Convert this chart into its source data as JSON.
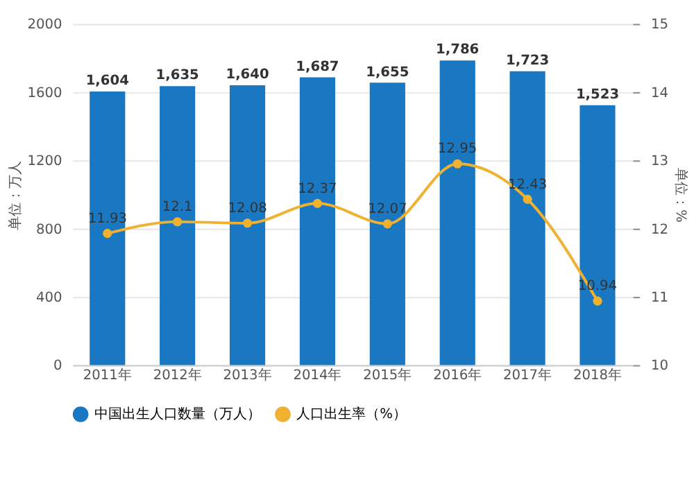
{
  "chart_data": {
    "type": "bar",
    "ylabel": "单位：万人",
    "y2label": "单位：%",
    "categories": [
      "2011年",
      "2012年",
      "2013年",
      "2014年",
      "2015年",
      "2016年",
      "2017年",
      "2018年"
    ],
    "series": [
      {
        "name": "中国出生人口数量（万人）",
        "color": "#1a78c2",
        "values": [
          1604,
          1635,
          1640,
          1687,
          1655,
          1786,
          1723,
          1523
        ],
        "value_labels": [
          "1,604",
          "1,635",
          "1,640",
          "1,687",
          "1,655",
          "1,786",
          "1,723",
          "1,523"
        ]
      },
      {
        "name": "人口出生率（%）",
        "color": "#f0b030",
        "type": "line",
        "axis": "y2",
        "values": [
          11.93,
          12.1,
          12.08,
          12.37,
          12.07,
          12.95,
          12.43,
          10.94
        ]
      }
    ],
    "ylim": [
      0,
      2000
    ],
    "yticks": [
      0,
      400,
      800,
      1200,
      1600,
      2000
    ],
    "y2lim": [
      10,
      15
    ],
    "y2ticks": [
      10,
      11,
      12,
      13,
      14,
      15
    ],
    "data_labels": true,
    "grid": "y",
    "legend": "bottom",
    "marker": "circle"
  }
}
